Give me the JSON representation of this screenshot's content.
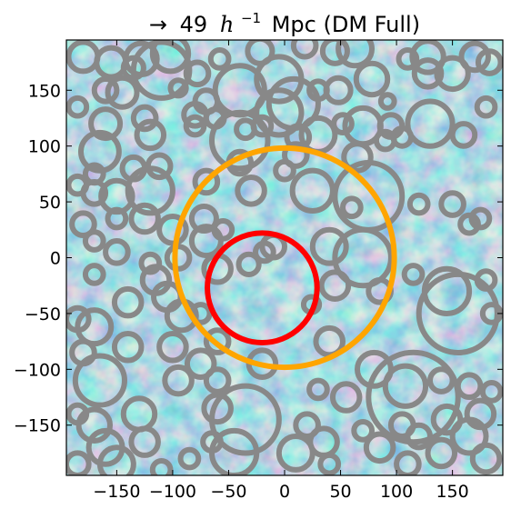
{
  "chart_data": {
    "type": "scatter",
    "title": {
      "arrow": "→",
      "value": "49",
      "h": "h",
      "exponent": "−1",
      "rest": "Mpc (DM Full)"
    },
    "xlabel": "",
    "ylabel": "",
    "xlim": [
      -195,
      195
    ],
    "ylim": [
      -195,
      195
    ],
    "xticks": [
      {
        "v": -150,
        "label": "−150"
      },
      {
        "v": -100,
        "label": "−100"
      },
      {
        "v": -50,
        "label": "−50"
      },
      {
        "v": 0,
        "label": "0"
      },
      {
        "v": 50,
        "label": "50"
      },
      {
        "v": 100,
        "label": "100"
      },
      {
        "v": 150,
        "label": "150"
      }
    ],
    "yticks": [
      {
        "v": 150,
        "label": "150"
      },
      {
        "v": 100,
        "label": "100"
      },
      {
        "v": 50,
        "label": "50"
      },
      {
        "v": 0,
        "label": "0"
      },
      {
        "v": -50,
        "label": "−50"
      },
      {
        "v": -100,
        "label": "−100"
      },
      {
        "v": -150,
        "label": "−150"
      }
    ],
    "grid": false,
    "background": "blue-yellow density field (DM)",
    "colors": {
      "void_ring": "#888888",
      "outer_ring": "#ffa500",
      "inner_ring": "#ff0000",
      "field_dark": "#2e6fae",
      "field_mid": "#6fb3cf",
      "field_light": "#d8ebb8"
    },
    "highlight_circles": [
      {
        "label": "outer",
        "x": 0,
        "y": 0,
        "r": 98
      },
      {
        "label": "inner",
        "x": -20,
        "y": -27,
        "r": 49
      }
    ],
    "void_circles": [
      [
        -180,
        180,
        13
      ],
      [
        -155,
        175,
        13
      ],
      [
        -128,
        178,
        14
      ],
      [
        -102,
        183,
        16
      ],
      [
        -58,
        178,
        8
      ],
      [
        -22,
        185,
        11
      ],
      [
        18,
        190,
        10
      ],
      [
        45,
        185,
        11
      ],
      [
        63,
        187,
        15
      ],
      [
        110,
        178,
        8
      ],
      [
        128,
        180,
        14
      ],
      [
        170,
        180,
        12
      ],
      [
        -135,
        170,
        9
      ],
      [
        -110,
        168,
        25
      ],
      [
        -78,
        165,
        10
      ],
      [
        -40,
        150,
        22
      ],
      [
        -5,
        160,
        20
      ],
      [
        30,
        150,
        8
      ],
      [
        48,
        150,
        11
      ],
      [
        78,
        160,
        14
      ],
      [
        92,
        140,
        6
      ],
      [
        128,
        165,
        12
      ],
      [
        150,
        165,
        14
      ],
      [
        183,
        175,
        10
      ],
      [
        -160,
        150,
        10
      ],
      [
        -145,
        148,
        13
      ],
      [
        -95,
        152,
        7
      ],
      [
        -70,
        140,
        10
      ],
      [
        8,
        138,
        22
      ],
      [
        52,
        120,
        8
      ],
      [
        70,
        118,
        16
      ],
      [
        95,
        118,
        10
      ],
      [
        180,
        135,
        8
      ],
      [
        -185,
        135,
        8
      ],
      [
        -160,
        120,
        13
      ],
      [
        -125,
        125,
        10
      ],
      [
        -80,
        128,
        10
      ],
      [
        -35,
        115,
        8
      ],
      [
        -20,
        118,
        8
      ],
      [
        12,
        108,
        10
      ],
      [
        30,
        110,
        15
      ],
      [
        65,
        90,
        12
      ],
      [
        130,
        120,
        20
      ],
      [
        160,
        110,
        10
      ],
      [
        -165,
        95,
        17
      ],
      [
        -120,
        110,
        12
      ],
      [
        -80,
        118,
        8
      ],
      [
        -5,
        130,
        20
      ],
      [
        -62,
        125,
        8
      ],
      [
        -40,
        105,
        25
      ],
      [
        10,
        92,
        10
      ],
      [
        105,
        108,
        8
      ],
      [
        -170,
        75,
        8
      ],
      [
        -135,
        80,
        10
      ],
      [
        -112,
        82,
        10
      ],
      [
        -40,
        85,
        10
      ],
      [
        0,
        78,
        8
      ],
      [
        90,
        105,
        8
      ],
      [
        -185,
        65,
        8
      ],
      [
        -170,
        58,
        10
      ],
      [
        -150,
        55,
        14
      ],
      [
        -120,
        60,
        20
      ],
      [
        -70,
        68,
        10
      ],
      [
        25,
        60,
        18
      ],
      [
        75,
        55,
        30
      ],
      [
        150,
        48,
        10
      ],
      [
        175,
        35,
        8
      ],
      [
        -150,
        35,
        8
      ],
      [
        -125,
        35,
        12
      ],
      [
        -100,
        25,
        12
      ],
      [
        -70,
        15,
        13
      ],
      [
        -30,
        60,
        12
      ],
      [
        60,
        45,
        8
      ],
      [
        120,
        48,
        8
      ],
      [
        165,
        30,
        8
      ],
      [
        -180,
        30,
        10
      ],
      [
        -170,
        15,
        8
      ],
      [
        -120,
        -5,
        8
      ],
      [
        -95,
        0,
        10
      ],
      [
        -55,
        25,
        8
      ],
      [
        -10,
        10,
        10
      ],
      [
        40,
        10,
        15
      ],
      [
        70,
        0,
        25
      ],
      [
        115,
        -15,
        8
      ],
      [
        145,
        -30,
        20
      ],
      [
        180,
        -20,
        8
      ],
      [
        -170,
        -15,
        8
      ],
      [
        -150,
        5,
        10
      ],
      [
        -115,
        -20,
        12
      ],
      [
        -60,
        -10,
        12
      ],
      [
        45,
        -25,
        12
      ],
      [
        85,
        -30,
        10
      ],
      [
        155,
        -50,
        35
      ],
      [
        185,
        -50,
        8
      ],
      [
        -185,
        -55,
        10
      ],
      [
        -180,
        -85,
        10
      ],
      [
        -170,
        -62,
        15
      ],
      [
        -140,
        -40,
        12
      ],
      [
        -105,
        -35,
        12
      ],
      [
        -92,
        -52,
        13
      ],
      [
        -60,
        -75,
        10
      ],
      [
        -20,
        -95,
        12
      ],
      [
        40,
        -75,
        12
      ],
      [
        80,
        -100,
        15
      ],
      [
        108,
        -115,
        18
      ],
      [
        140,
        -110,
        10
      ],
      [
        -165,
        -110,
        22
      ],
      [
        -140,
        -80,
        12
      ],
      [
        -100,
        -80,
        12
      ],
      [
        -75,
        -95,
        12
      ],
      [
        -60,
        -110,
        10
      ],
      [
        30,
        -118,
        8
      ],
      [
        55,
        -125,
        12
      ],
      [
        115,
        -125,
        40
      ],
      [
        165,
        -115,
        10
      ],
      [
        185,
        -120,
        8
      ],
      [
        -185,
        -140,
        8
      ],
      [
        -170,
        -150,
        14
      ],
      [
        -130,
        -140,
        14
      ],
      [
        -95,
        -110,
        12
      ],
      [
        -60,
        -135,
        12
      ],
      [
        -35,
        -145,
        30
      ],
      [
        20,
        -150,
        10
      ],
      [
        35,
        -165,
        12
      ],
      [
        70,
        -155,
        8
      ],
      [
        105,
        -150,
        10
      ],
      [
        120,
        -160,
        10
      ],
      [
        145,
        -145,
        12
      ],
      [
        175,
        -140,
        12
      ],
      [
        -185,
        -185,
        10
      ],
      [
        -160,
        -170,
        15
      ],
      [
        -125,
        -165,
        12
      ],
      [
        -110,
        -190,
        8
      ],
      [
        -65,
        -165,
        8
      ],
      [
        -45,
        -175,
        20
      ],
      [
        10,
        -175,
        15
      ],
      [
        40,
        -185,
        8
      ],
      [
        85,
        -170,
        12
      ],
      [
        110,
        -185,
        10
      ],
      [
        140,
        -175,
        12
      ],
      [
        165,
        -160,
        15
      ],
      [
        180,
        -180,
        12
      ],
      [
        -150,
        -185,
        15
      ],
      [
        -85,
        -180,
        8
      ],
      [
        -75,
        -50,
        8
      ],
      [
        -18,
        5,
        8
      ],
      [
        -32,
        -6,
        9
      ],
      [
        24,
        -42,
        7
      ],
      [
        -72,
        35,
        11
      ]
    ]
  }
}
